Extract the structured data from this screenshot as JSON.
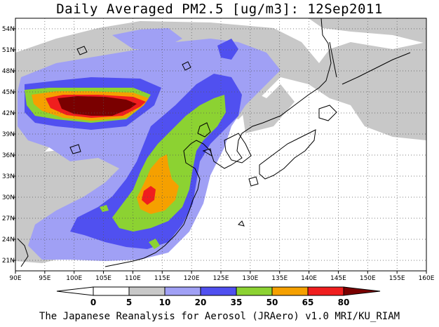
{
  "title": "Daily Averaged PM2.5 [ug/m3]: 12Sep2011",
  "credit": "The Japanese Reanalysis for Aerosol (JRAero) v1.0 MRI/KU_RIAM",
  "map": {
    "lon_range": [
      90,
      160
    ],
    "lat_range": [
      19.5,
      55.5
    ],
    "x_ticks": [
      "90E",
      "95E",
      "100E",
      "105E",
      "110E",
      "115E",
      "120E",
      "125E",
      "130E",
      "135E",
      "140E",
      "145E",
      "150E",
      "155E",
      "160E"
    ],
    "y_ticks": [
      "21N",
      "24N",
      "27N",
      "30N",
      "33N",
      "36N",
      "39N",
      "42N",
      "45N",
      "48N",
      "51N",
      "54N"
    ],
    "grid": "dotted"
  },
  "colorbar": {
    "levels": [
      "0",
      "5",
      "10",
      "20",
      "35",
      "50",
      "65",
      "80"
    ],
    "colors": [
      "#ffffff",
      "#c8c8c8",
      "#a0a0f5",
      "#5050f0",
      "#8cd232",
      "#f5a000",
      "#f01e1e",
      "#7a0000"
    ]
  }
}
